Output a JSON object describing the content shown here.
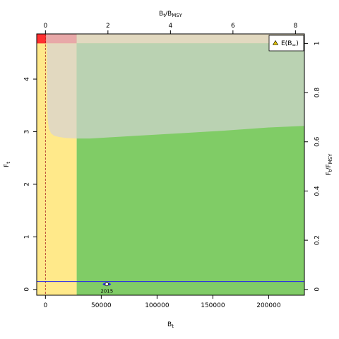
{
  "chart_data": {
    "type": "scatter",
    "xlabel": "B",
    "xlabel_sub": "t",
    "ylabel": "F",
    "ylabel_sub": "t",
    "top_label": {
      "num": "B",
      "num_sub": "t",
      "sep": "/",
      "den": "B",
      "den_sub": "MSY"
    },
    "right_label": {
      "num": "F",
      "num_sub": "t",
      "sep": "/",
      "den": "F",
      "den_sub": "MSY"
    },
    "xlim": [
      -7800,
      232000
    ],
    "ylim": [
      -0.11,
      4.86
    ],
    "bottom_ticks": [
      {
        "value": 0,
        "label": "0"
      },
      {
        "value": 50000,
        "label": "50000"
      },
      {
        "value": 100000,
        "label": "100000"
      },
      {
        "value": 150000,
        "label": "150000"
      },
      {
        "value": 200000,
        "label": "200000"
      }
    ],
    "left_ticks": [
      {
        "value": 0,
        "label": "0"
      },
      {
        "value": 1,
        "label": "1"
      },
      {
        "value": 2,
        "label": "2"
      },
      {
        "value": 3,
        "label": "3"
      },
      {
        "value": 4,
        "label": "4"
      }
    ],
    "top_ticks": [
      {
        "value": 0,
        "label": "0"
      },
      {
        "value": 2,
        "label": "2"
      },
      {
        "value": 4,
        "label": "4"
      },
      {
        "value": 6,
        "label": "6"
      },
      {
        "value": 8,
        "label": "8"
      }
    ],
    "right_ticks": [
      {
        "value": 0,
        "label": "0"
      },
      {
        "value": 0.2,
        "label": "0.2"
      },
      {
        "value": 0.4,
        "label": "0.4"
      },
      {
        "value": 0.6,
        "label": "0.6"
      },
      {
        "value": 0.8,
        "label": "0.8"
      },
      {
        "value": 1,
        "label": "1"
      }
    ],
    "bmsy": 28000,
    "fmsy": 4.68,
    "blim": 600,
    "top_axis_per_unit": 28000,
    "right_axis_per_unit": 4.68,
    "envelope_curve": [
      [
        1200,
        4.68
      ],
      [
        1500,
        3.6
      ],
      [
        2000,
        3.25
      ],
      [
        3000,
        3.06
      ],
      [
        5000,
        2.97
      ],
      [
        8000,
        2.92
      ],
      [
        12000,
        2.9
      ],
      [
        18000,
        2.88
      ],
      [
        28000,
        2.87
      ],
      [
        40000,
        2.87
      ],
      [
        80000,
        2.92
      ],
      [
        120000,
        2.97
      ],
      [
        160000,
        3.02
      ],
      [
        200000,
        3.08
      ],
      [
        232000,
        3.11
      ]
    ],
    "reference_line_y": 0.15,
    "points": [
      {
        "x": 55000,
        "y": 0.1,
        "label": "2015",
        "x_err": [
          53000,
          58000
        ]
      }
    ],
    "legend": {
      "entries": [
        {
          "label": "E(B",
          "label_sub": "∞",
          "label_end": ")"
        }
      ],
      "placement": "top-right"
    },
    "colors": {
      "red": "#ff3030",
      "pink": "#e8a8a8",
      "orange_pale": "#e2d9c0",
      "yellow": "#ffe98a",
      "green": "#80cc66",
      "green_pale": "#bad2b2",
      "blue_line": "#2222ee",
      "vline": "#aa2222",
      "legend_marker": "#e0c000"
    },
    "grid": false
  }
}
